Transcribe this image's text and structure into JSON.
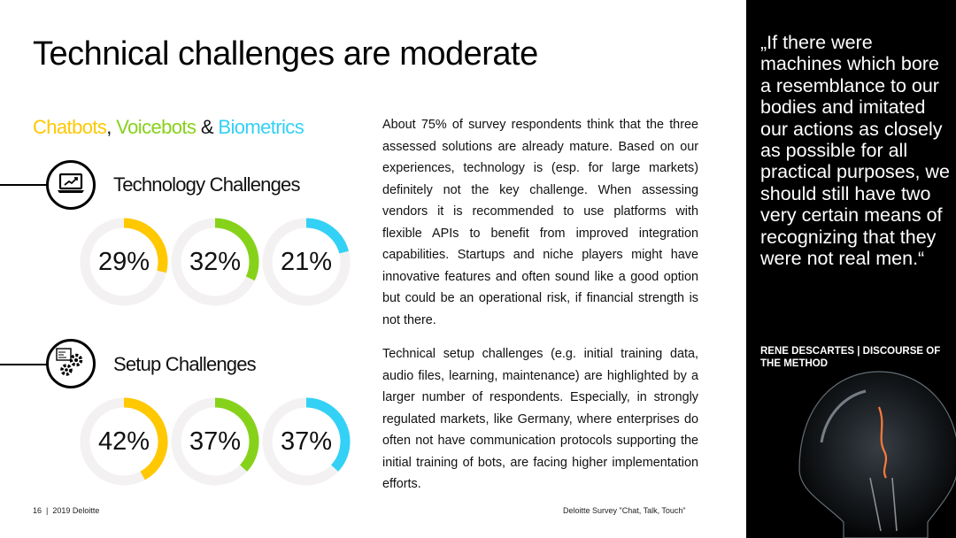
{
  "title": "Technical challenges are moderate",
  "subtitle": {
    "part1": "Chatbots",
    "sep1": ", ",
    "part2": "Voicebots",
    "sep2": " & ",
    "part3": "Biometrics",
    "colors": {
      "chatbots": "#FFC800",
      "voicebots": "#86D21A",
      "biometrics": "#33D1F5",
      "separator": "#111111"
    }
  },
  "sections": [
    {
      "title": "Technology Challenges",
      "icon": "laptop-chart-icon",
      "values": [
        {
          "label": "29%",
          "value": 29,
          "color": "#FFC800"
        },
        {
          "label": "32%",
          "value": 32,
          "color": "#86D21A"
        },
        {
          "label": "21%",
          "value": 21,
          "color": "#33D1F5"
        }
      ]
    },
    {
      "title": "Setup Challenges",
      "icon": "gears-code-icon",
      "values": [
        {
          "label": "42%",
          "value": 42,
          "color": "#FFC800"
        },
        {
          "label": "37%",
          "value": 37,
          "color": "#86D21A"
        },
        {
          "label": "37%",
          "value": 37,
          "color": "#33D1F5"
        }
      ]
    }
  ],
  "ring_track_color": "#F3F1F1",
  "body": {
    "para1": "About 75% of survey respondents think that the three assessed solutions are already mature. Based on our experiences, technology is (esp. for large markets) definitely not the key challenge. When assessing vendors it is recommended to use platforms with flexible APIs to benefit from improved integration capabilities. Startups and niche players might have innovative features and often sound like a good option but could be an operational risk, if financial strength is not there.",
    "para2": "Technical setup challenges (e.g. initial training data, audio files, learning, maintenance) are highlighted by a larger number of respondents. Especially, in strongly regulated markets, like Germany, where enterprises do often not have communication protocols supporting the initial training of bots, are facing higher implementation efforts."
  },
  "footer": {
    "left": "16  |  2019 Deloitte",
    "right": "Deloitte Survey \"Chat, Talk, Touch\""
  },
  "quote": {
    "text": "„If there were machines which bore a resemblance to our bodies and imitated our actions as closely as possible for all practical purposes, we should still have two very certain means of recognizing that they were not real men.“",
    "attribution": "RENE DESCARTES | DISCOURSE OF THE METHOD"
  }
}
